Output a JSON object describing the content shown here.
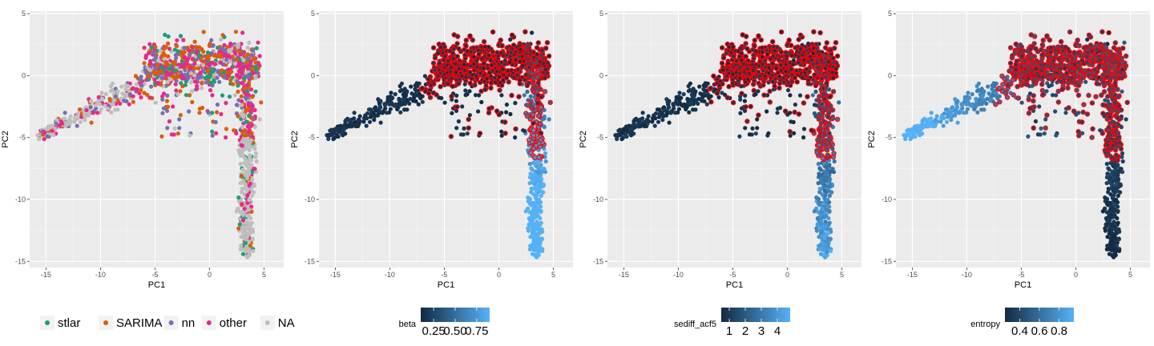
{
  "chart_data": [
    {
      "type": "scatter",
      "xlabel": "PC1",
      "ylabel": "PC2",
      "xlim": [
        -16.5,
        6.8
      ],
      "ylim": [
        -15.5,
        5.2
      ],
      "x_ticks": [
        -15,
        -10,
        -5,
        0,
        5
      ],
      "y_ticks": [
        -15,
        -10,
        -5,
        0,
        5
      ],
      "grid": true,
      "legend": {
        "placement": "bottom",
        "type": "categorical",
        "title": "",
        "entries": [
          {
            "label": "stlar",
            "color": "#1b9e77"
          },
          {
            "label": "SARIMA",
            "color": "#d95f02"
          },
          {
            "label": "nn",
            "color": "#7570b3"
          },
          {
            "label": "other",
            "color": "#e7298a"
          },
          {
            "label": "NA",
            "color": "#bebebe"
          }
        ]
      }
    },
    {
      "type": "scatter",
      "xlabel": "PC1",
      "ylabel": "PC2",
      "xlim": [
        -16.5,
        6.8
      ],
      "ylim": [
        -15.5,
        5.2
      ],
      "x_ticks": [
        -15,
        -10,
        -5,
        0,
        5
      ],
      "y_ticks": [
        -15,
        -10,
        -5,
        0,
        5
      ],
      "grid": true,
      "highlight_color": "#ff0000",
      "legend": {
        "placement": "bottom",
        "type": "continuous",
        "title": "beta",
        "ticks": [
          "0.25",
          "0.50",
          "0.75"
        ],
        "tick_values": [
          0.25,
          0.5,
          0.75
        ],
        "range": [
          0.1,
          0.9
        ],
        "low_color": "#132b43",
        "high_color": "#56b1f7"
      }
    },
    {
      "type": "scatter",
      "xlabel": "PC1",
      "ylabel": "PC2",
      "xlim": [
        -16.5,
        6.8
      ],
      "ylim": [
        -15.5,
        5.2
      ],
      "x_ticks": [
        -15,
        -10,
        -5,
        0,
        5
      ],
      "y_ticks": [
        -15,
        -10,
        -5,
        0,
        5
      ],
      "grid": true,
      "highlight_color": "#ff0000",
      "legend": {
        "placement": "bottom",
        "type": "continuous",
        "title": "sediff_acf5",
        "ticks": [
          "1",
          "2",
          "3",
          "4"
        ],
        "tick_values": [
          1,
          2,
          3,
          4
        ],
        "range": [
          0.5,
          4.8
        ],
        "low_color": "#132b43",
        "high_color": "#56b1f7"
      }
    },
    {
      "type": "scatter",
      "xlabel": "PC1",
      "ylabel": "PC2",
      "xlim": [
        -16.5,
        6.8
      ],
      "ylim": [
        -15.5,
        5.2
      ],
      "x_ticks": [
        -15,
        -10,
        -5,
        0,
        5
      ],
      "y_ticks": [
        -15,
        -10,
        -5,
        0,
        5
      ],
      "grid": true,
      "highlight_color": "#ff0000",
      "legend": {
        "placement": "bottom",
        "type": "continuous",
        "title": "entropy",
        "ticks": [
          "0.4",
          "0.6",
          "0.8"
        ],
        "tick_values": [
          0.4,
          0.6,
          0.8
        ],
        "range": [
          0.25,
          0.95
        ],
        "low_color": "#132b43",
        "high_color": "#56b1f7"
      }
    }
  ]
}
